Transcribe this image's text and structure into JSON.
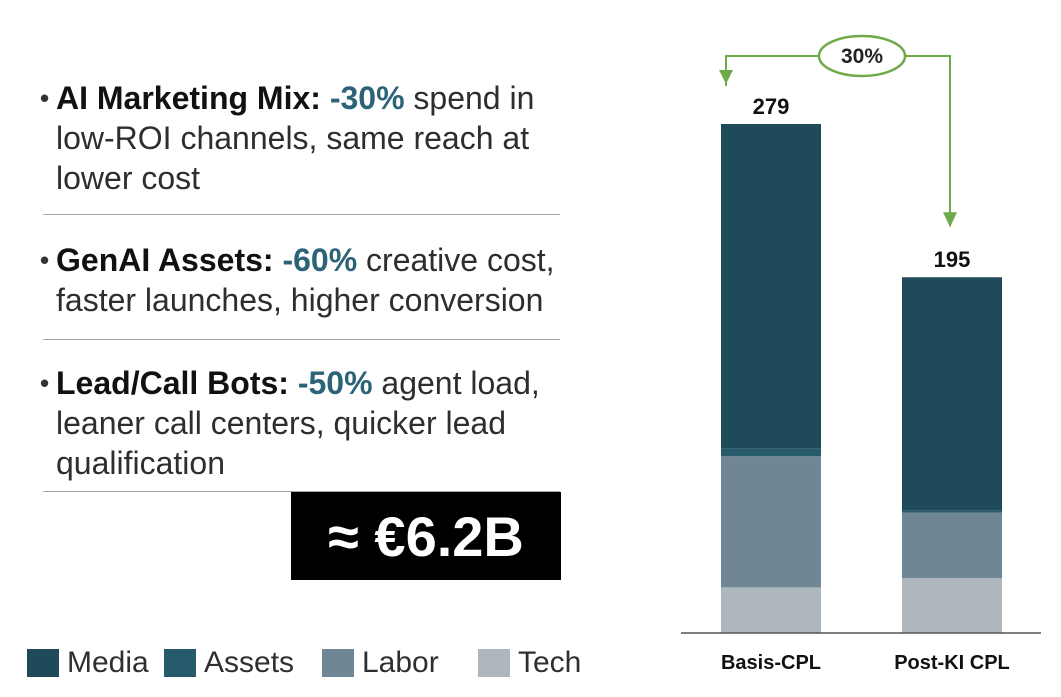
{
  "bullets": [
    {
      "lead": "AI Marketing Mix:",
      "pct": "-30%",
      "rest": " spend in low-ROI channels, same reach at lower cost"
    },
    {
      "lead": "GenAI Assets:",
      "pct": "-60%",
      "rest": " creative cost, faster launches, higher conversion"
    },
    {
      "lead": "Lead/Call Bots:",
      "pct": "-50%",
      "rest": " agent load, leaner call centers, quicker lead qualification"
    }
  ],
  "bullet_glyph": "•",
  "total": "≈ €6.2B",
  "colors": {
    "media": "#1f4a59",
    "assets": "#265b6c",
    "labor": "#6f8795",
    "tech": "#adb7bd",
    "axis": "#555555",
    "annotation": "#6eaa47",
    "accent_text": "#2d6376"
  },
  "chart_data": {
    "type": "bar",
    "stacked": true,
    "categories": [
      "Basis-CPL",
      "Post-KI CPL"
    ],
    "series": [
      {
        "name": "Media",
        "values": [
          178,
          128
        ]
      },
      {
        "name": "Assets",
        "values": [
          4,
          1
        ]
      },
      {
        "name": "Labor",
        "values": [
          72,
          36
        ]
      },
      {
        "name": "Tech",
        "values": [
          25,
          30
        ]
      }
    ],
    "totals": [
      279,
      195
    ],
    "total_labels": [
      "279",
      "195"
    ],
    "annotation": {
      "label": "30%",
      "from": "Basis-CPL",
      "to": "Post-KI CPL"
    },
    "ylim": [
      0,
      279
    ],
    "legend_placement": "bottom-left",
    "title": "",
    "xlabel": "",
    "ylabel": ""
  }
}
